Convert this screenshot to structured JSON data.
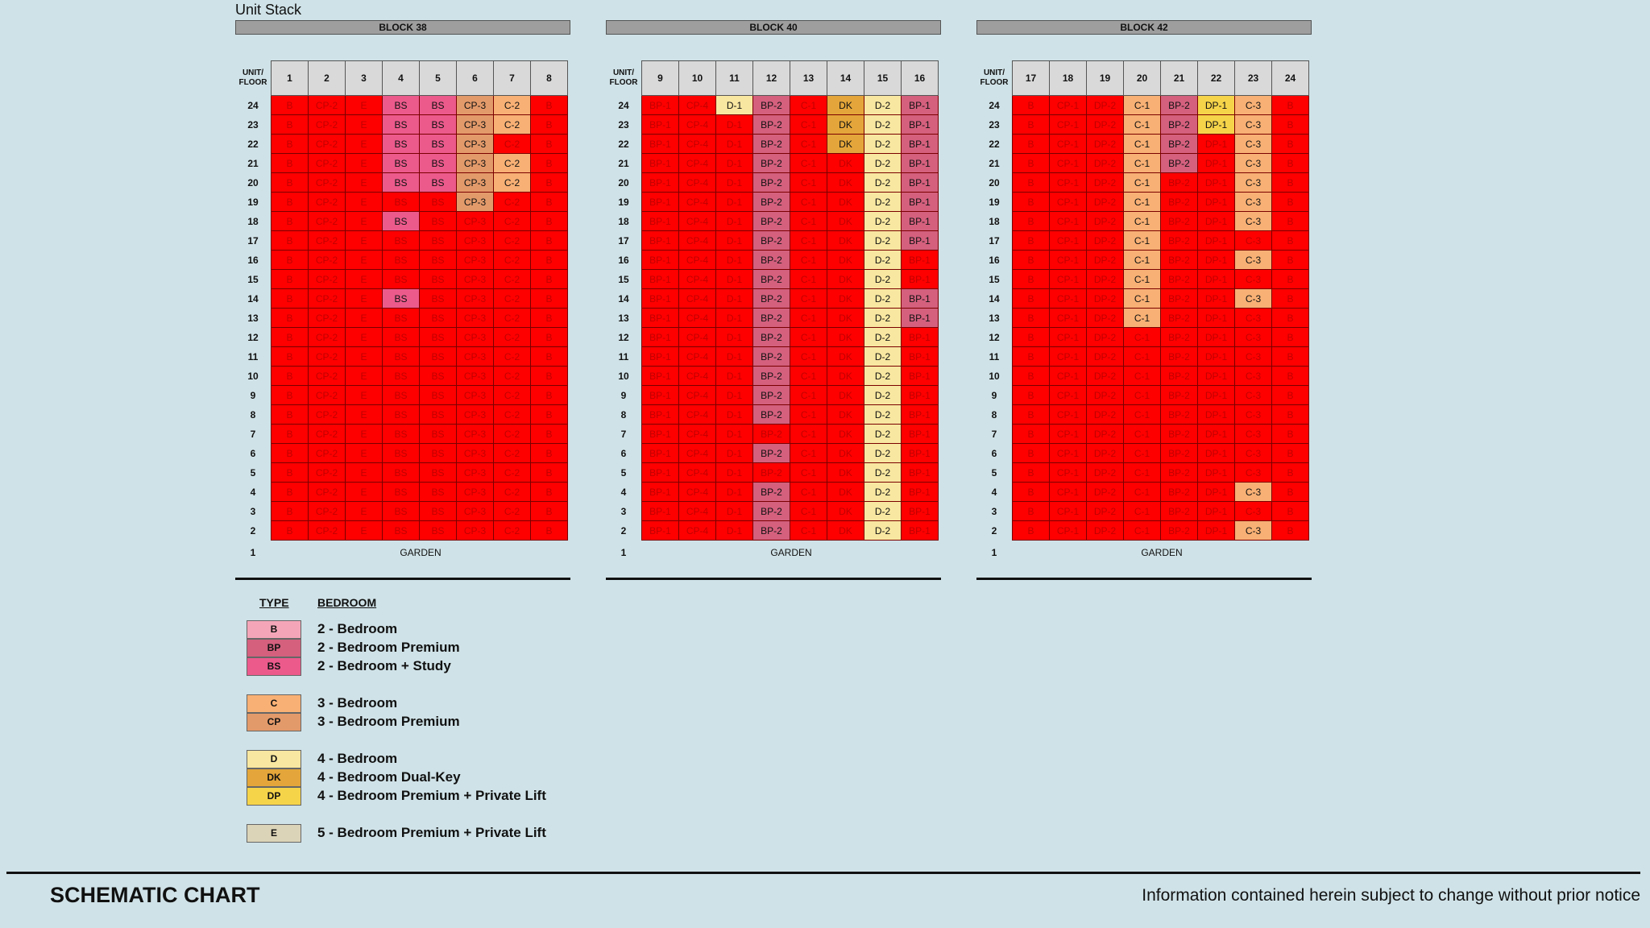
{
  "page_title": "Unit Stack",
  "floor_header": [
    "UNIT/",
    "FLOOR"
  ],
  "colors": {
    "unavailable": "#ff0000",
    "unavailable_text": "#c00000"
  },
  "type_colors": {
    "B": "#f4a6b8",
    "BP": "#d4607e",
    "BS": "#ec5a8c",
    "C": "#f8b074",
    "CP": "#e39a6a",
    "D": "#f8e7a0",
    "DK": "#e4a63a",
    "DP": "#f6d44a",
    "E": "#dcd4b8"
  },
  "floors": [
    24,
    23,
    22,
    21,
    20,
    19,
    18,
    17,
    16,
    15,
    14,
    13,
    12,
    11,
    10,
    9,
    8,
    7,
    6,
    5,
    4,
    3,
    2
  ],
  "ground": {
    "floor": "1",
    "label": "GARDEN"
  },
  "blocks": [
    {
      "name": "BLOCK 38",
      "units": [
        "1",
        "2",
        "3",
        "4",
        "5",
        "6",
        "7",
        "8"
      ],
      "types": [
        "B",
        "CP-2",
        "E",
        "BS",
        "BS",
        "CP-3",
        "C-2",
        "B"
      ],
      "available": {
        "24": [
          3,
          4,
          5,
          6
        ],
        "23": [
          3,
          4,
          5,
          6
        ],
        "22": [
          3,
          4,
          5
        ],
        "21": [
          3,
          4,
          5,
          6
        ],
        "20": [
          3,
          4,
          5,
          6
        ],
        "19": [
          5
        ],
        "18": [
          3
        ],
        "14": [
          3
        ]
      }
    },
    {
      "name": "BLOCK 40",
      "units": [
        "9",
        "10",
        "11",
        "12",
        "13",
        "14",
        "15",
        "16"
      ],
      "types": [
        "BP-1",
        "CP-4",
        "D-1",
        "BP-2",
        "C-1",
        "DK",
        "D-2",
        "BP-1"
      ],
      "available": {
        "24": [
          2,
          3,
          5,
          6,
          7
        ],
        "23": [
          3,
          5,
          6,
          7
        ],
        "22": [
          3,
          5,
          6,
          7
        ],
        "21": [
          3,
          6,
          7
        ],
        "20": [
          3,
          6,
          7
        ],
        "19": [
          3,
          6,
          7
        ],
        "18": [
          3,
          6,
          7
        ],
        "17": [
          3,
          6,
          7
        ],
        "16": [
          3,
          6
        ],
        "15": [
          3,
          6
        ],
        "14": [
          3,
          6,
          7
        ],
        "13": [
          3,
          6,
          7
        ],
        "12": [
          3,
          6
        ],
        "11": [
          3,
          6
        ],
        "10": [
          3,
          6
        ],
        "9": [
          3,
          6
        ],
        "8": [
          3,
          6
        ],
        "7": [
          6
        ],
        "6": [
          3,
          6
        ],
        "5": [
          6
        ],
        "4": [
          3,
          6
        ],
        "3": [
          3,
          6
        ],
        "2": [
          3,
          6
        ]
      }
    },
    {
      "name": "BLOCK 42",
      "units": [
        "17",
        "18",
        "19",
        "20",
        "21",
        "22",
        "23",
        "24"
      ],
      "types": [
        "B",
        "CP-1",
        "DP-2",
        "C-1",
        "BP-2",
        "DP-1",
        "C-3",
        "B"
      ],
      "available": {
        "24": [
          3,
          4,
          5,
          6
        ],
        "23": [
          3,
          4,
          5,
          6
        ],
        "22": [
          3,
          4,
          6
        ],
        "21": [
          3,
          4,
          6
        ],
        "20": [
          3,
          6
        ],
        "19": [
          3,
          6
        ],
        "18": [
          3,
          6
        ],
        "17": [
          3
        ],
        "16": [
          3,
          6
        ],
        "15": [
          3
        ],
        "14": [
          3,
          6
        ],
        "13": [
          3
        ],
        "4": [
          6
        ],
        "2": [
          6
        ]
      }
    }
  ],
  "legend": {
    "type_header": "TYPE",
    "bedroom_header": "BEDROOM",
    "groups": [
      [
        {
          "code": "B",
          "label": "2 - Bedroom"
        },
        {
          "code": "BP",
          "label": "2 - Bedroom Premium"
        },
        {
          "code": "BS",
          "label": "2 - Bedroom + Study"
        }
      ],
      [
        {
          "code": "C",
          "label": "3 - Bedroom"
        },
        {
          "code": "CP",
          "label": "3 - Bedroom Premium"
        }
      ],
      [
        {
          "code": "D",
          "label": "4 - Bedroom"
        },
        {
          "code": "DK",
          "label": "4 - Bedroom Dual-Key"
        },
        {
          "code": "DP",
          "label": "4 - Bedroom Premium + Private Lift"
        }
      ],
      [
        {
          "code": "E",
          "label": "5 - Bedroom Premium + Private Lift"
        }
      ]
    ]
  },
  "footer": {
    "title": "SCHEMATIC CHART",
    "note": "Information contained herein subject to change without prior notice"
  }
}
